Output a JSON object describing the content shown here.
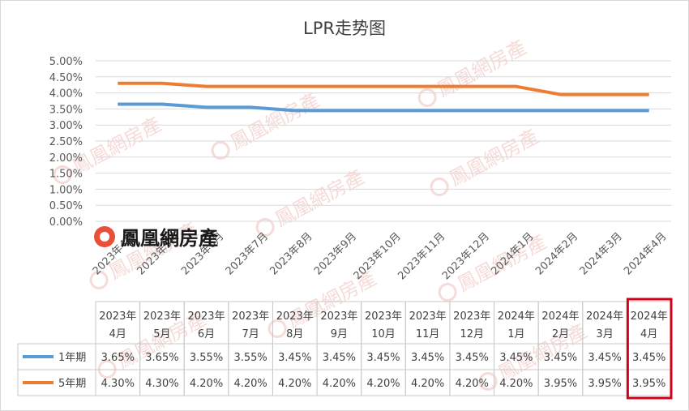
{
  "chart_data": {
    "type": "line",
    "title": "LPR走势图",
    "categories": [
      "2023年4月",
      "2023年5月",
      "2023年6月",
      "2023年7月",
      "2023年8月",
      "2023年9月",
      "2023年10月",
      "2023年11月",
      "2023年12月",
      "2024年1月",
      "2024年2月",
      "2024年3月",
      "2024年4月"
    ],
    "table_categories": [
      [
        "2023年",
        "4月"
      ],
      [
        "2023年",
        "5月"
      ],
      [
        "2023年",
        "6月"
      ],
      [
        "2023年",
        "7月"
      ],
      [
        "2023年",
        "8月"
      ],
      [
        "2023年",
        "9月"
      ],
      [
        "2023年",
        "10月"
      ],
      [
        "2023年",
        "11月"
      ],
      [
        "2023年",
        "12月"
      ],
      [
        "2024年",
        "1月"
      ],
      [
        "2024年",
        "2月"
      ],
      [
        "2024年",
        "3月"
      ],
      [
        "2024年",
        "4月"
      ]
    ],
    "series": [
      {
        "name": "1年期",
        "color": "#5b9bd5",
        "values": [
          3.65,
          3.65,
          3.55,
          3.55,
          3.45,
          3.45,
          3.45,
          3.45,
          3.45,
          3.45,
          3.45,
          3.45,
          3.45
        ],
        "labels": [
          "3.65%",
          "3.65%",
          "3.55%",
          "3.55%",
          "3.45%",
          "3.45%",
          "3.45%",
          "3.45%",
          "3.45%",
          "3.45%",
          "3.45%",
          "3.45%",
          "3.45%"
        ]
      },
      {
        "name": "5年期",
        "color": "#ed7d31",
        "values": [
          4.3,
          4.3,
          4.2,
          4.2,
          4.2,
          4.2,
          4.2,
          4.2,
          4.2,
          4.2,
          3.95,
          3.95,
          3.95
        ],
        "labels": [
          "4.30%",
          "4.30%",
          "4.20%",
          "4.20%",
          "4.20%",
          "4.20%",
          "4.20%",
          "4.20%",
          "4.20%",
          "4.20%",
          "3.95%",
          "3.95%",
          "3.95%"
        ]
      }
    ],
    "ylim": [
      0,
      5
    ],
    "yticks": [
      "0.00%",
      "0.50%",
      "1.00%",
      "1.50%",
      "2.00%",
      "2.50%",
      "3.00%",
      "3.50%",
      "4.00%",
      "4.50%",
      "5.00%"
    ],
    "grid": true,
    "legend": "data-table",
    "highlight_column": "2024年4月",
    "highlight_color": "#d0021b"
  },
  "watermark": {
    "text": "鳳凰網房產",
    "logo_text": "鳳凰網房產",
    "logo_color": "#e8503a"
  }
}
